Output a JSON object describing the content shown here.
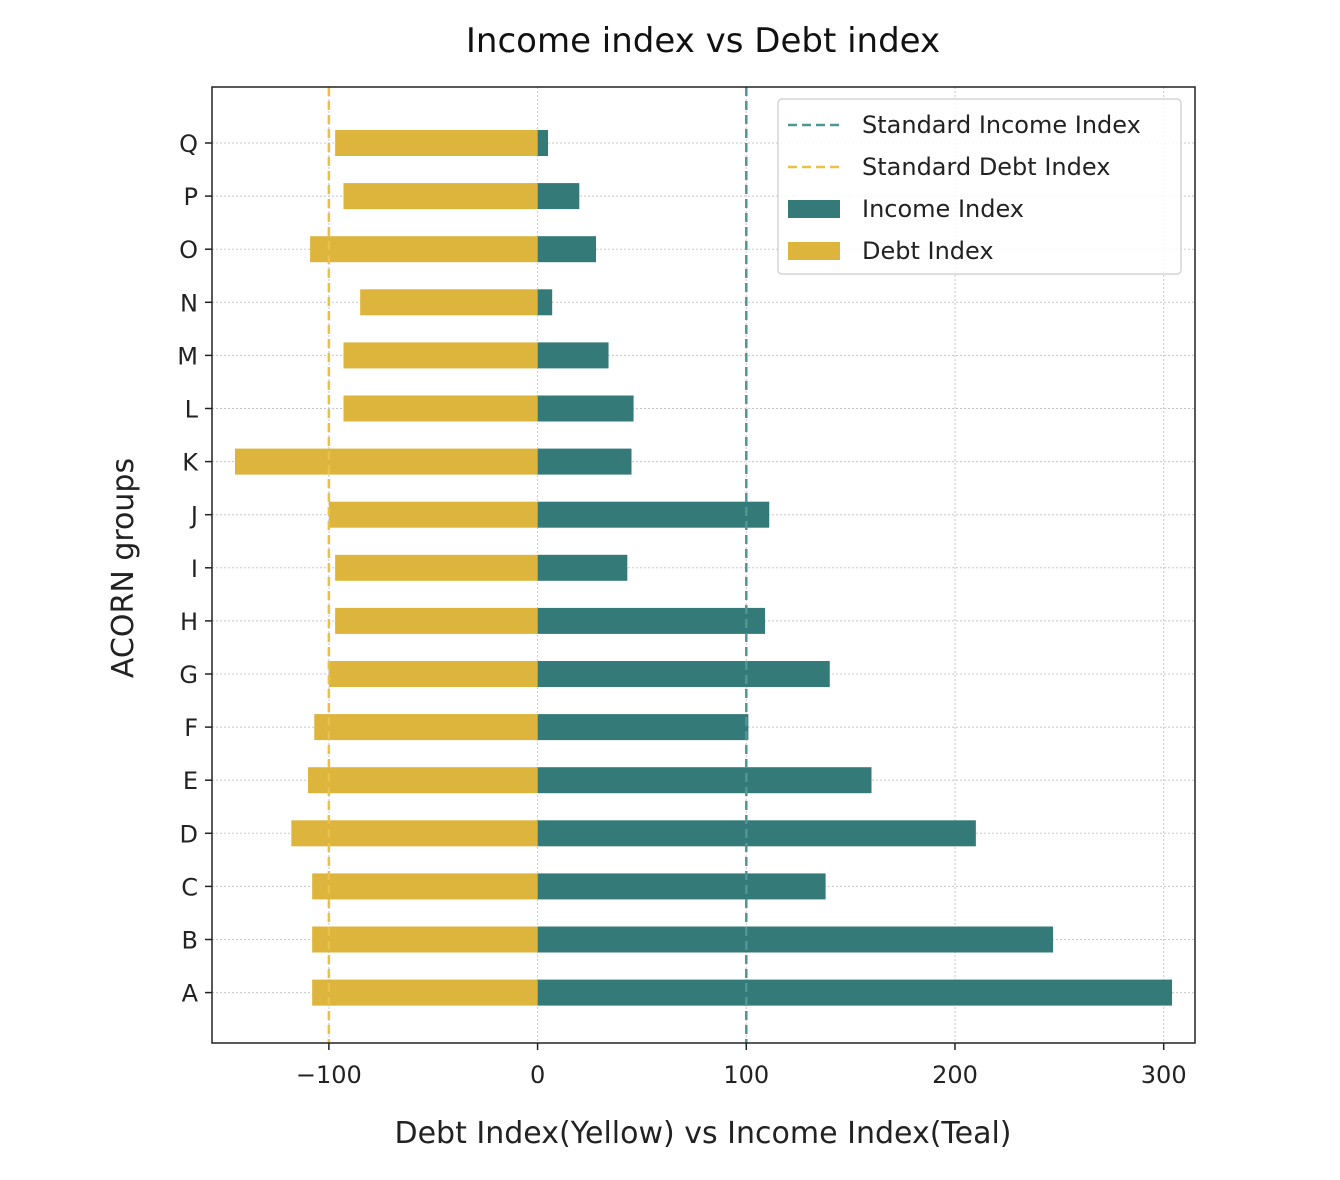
{
  "chart_data": {
    "type": "bar",
    "orientation": "horizontal",
    "title": "Income index vs Debt index",
    "xlabel": "Debt Index(Yellow) vs Income Index(Teal)",
    "ylabel": "ACORN groups",
    "categories": [
      "A",
      "B",
      "C",
      "D",
      "E",
      "F",
      "G",
      "H",
      "I",
      "J",
      "K",
      "L",
      "M",
      "N",
      "O",
      "P",
      "Q"
    ],
    "series": [
      {
        "name": "Income Index",
        "color": "#347a78",
        "values": [
          304,
          247,
          138,
          210,
          160,
          101,
          140,
          109,
          43,
          111,
          45,
          46,
          34,
          7,
          28,
          20,
          5
        ]
      },
      {
        "name": "Debt Index",
        "color": "#ddb53c",
        "values": [
          -108,
          -108,
          -108,
          -118,
          -110,
          -107,
          -100,
          -97,
          -97,
          -100,
          -145,
          -93,
          -93,
          -85,
          -109,
          -93,
          -97
        ]
      }
    ],
    "reference_lines": [
      {
        "name": "Standard Income Index",
        "x": 100,
        "color": "#4f9797",
        "style": "dashed"
      },
      {
        "name": "Standard Debt Index",
        "x": -100,
        "color": "#e8c04a",
        "style": "dashed"
      }
    ],
    "xlim": [
      -156,
      315
    ],
    "xticks": [
      -100,
      0,
      100,
      200,
      300
    ],
    "xtick_labels": [
      "−100",
      "0",
      "100",
      "200",
      "300"
    ],
    "grid": true,
    "legend_position": "top-right",
    "legend": [
      "Standard Income Index",
      "Standard Debt Index",
      "Income Index",
      "Debt Index"
    ]
  }
}
